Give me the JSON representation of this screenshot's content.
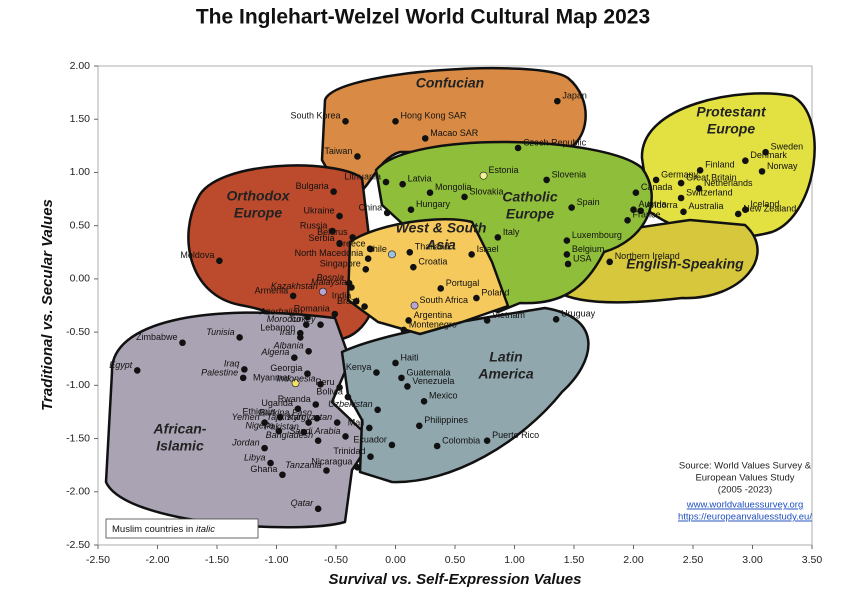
{
  "chart_data": {
    "type": "scatter",
    "title": "The Inglehart-Welzel World Cultural Map 2023",
    "x_label": "Survival vs. Self-Expression Values",
    "y_label": "Traditional vs. Secular Values",
    "xlim": [
      -2.5,
      3.5
    ],
    "ylim": [
      -2.5,
      2.0
    ],
    "xticks": [
      {
        "value": -2.5,
        "label": "-2.50"
      },
      {
        "value": -2.0,
        "label": "-2.00"
      },
      {
        "value": -1.5,
        "label": "-1.50"
      },
      {
        "value": -1.0,
        "label": "-1.00"
      },
      {
        "value": -0.5,
        "label": "-0.50"
      },
      {
        "value": 0,
        "label": "0.00"
      },
      {
        "value": 0.5,
        "label": "0.50"
      },
      {
        "value": 1.0,
        "label": "1.00"
      },
      {
        "value": 1.5,
        "label": "1.50"
      },
      {
        "value": 2.0,
        "label": "2.00"
      },
      {
        "value": 2.5,
        "label": "2.50"
      },
      {
        "value": 3.0,
        "label": "3.00"
      },
      {
        "value": 3.5,
        "label": "3.50"
      }
    ],
    "yticks": [
      {
        "value": 2.0,
        "label": "2.00"
      },
      {
        "value": 1.5,
        "label": "1.50"
      },
      {
        "value": 1.0,
        "label": "1.00"
      },
      {
        "value": 0.5,
        "label": "0.50"
      },
      {
        "value": 0,
        "label": "0.00"
      },
      {
        "value": -0.5,
        "label": "-0.50"
      },
      {
        "value": -1.0,
        "label": "-1.00"
      },
      {
        "value": -1.5,
        "label": "-1.50"
      },
      {
        "value": -2.0,
        "label": "-2.00"
      },
      {
        "value": -2.5,
        "label": "-2.50"
      }
    ],
    "point_color": "#111111",
    "regions": [
      {
        "lines": [
          "Confucian"
        ],
        "color": "#d98b45"
      },
      {
        "lines": [
          "Protestant",
          "Europe"
        ],
        "color": "#e3e142"
      },
      {
        "lines": [
          "English-Speaking"
        ],
        "color": "#d6c73c"
      },
      {
        "lines": [
          "Catholic",
          "Europe"
        ],
        "color": "#8fbf3a"
      },
      {
        "lines": [
          "Orthodox",
          "Europe"
        ],
        "color": "#bb4b2c"
      },
      {
        "lines": [
          "African-",
          "Islamic"
        ],
        "color": "#aaa3b3"
      },
      {
        "lines": [
          "Latin",
          "America"
        ],
        "color": "#90a7ae"
      },
      {
        "lines": [
          "West & South",
          "Asia"
        ],
        "color": "#f5c95c"
      }
    ],
    "points": [
      {
        "name": "Japan",
        "x": 1.36,
        "y": 1.67
      },
      {
        "name": "South Korea",
        "x": -0.42,
        "y": 1.48
      },
      {
        "name": "Hong Kong SAR",
        "x": 0.0,
        "y": 1.48
      },
      {
        "name": "Macao SAR",
        "x": 0.25,
        "y": 1.32
      },
      {
        "name": "Taiwan",
        "x": -0.32,
        "y": 1.15
      },
      {
        "name": "Czech Republic",
        "x": 1.03,
        "y": 1.23
      },
      {
        "name": "Estonia",
        "x": 0.74,
        "y": 0.97,
        "color": "#f3ef9a"
      },
      {
        "name": "Slovenia",
        "x": 1.27,
        "y": 0.93
      },
      {
        "name": "Lithuania",
        "x": -0.08,
        "y": 0.91
      },
      {
        "name": "Latvia",
        "x": 0.06,
        "y": 0.89
      },
      {
        "name": "Bulgaria",
        "x": -0.52,
        "y": 0.82
      },
      {
        "name": "Mongolia",
        "x": 0.29,
        "y": 0.81
      },
      {
        "name": "Slovakia",
        "x": 0.58,
        "y": 0.77
      },
      {
        "name": "Spain",
        "x": 1.48,
        "y": 0.67
      },
      {
        "name": "Hungary",
        "x": 0.13,
        "y": 0.65
      },
      {
        "name": "Ukraine",
        "x": -0.47,
        "y": 0.59
      },
      {
        "name": "China",
        "x": -0.07,
        "y": 0.62
      },
      {
        "name": "Austria",
        "x": 2.0,
        "y": 0.65
      },
      {
        "name": "Germany",
        "x": 2.19,
        "y": 0.93
      },
      {
        "name": "Great Britain",
        "x": 2.4,
        "y": 0.9
      },
      {
        "name": "Denmark",
        "x": 2.94,
        "y": 1.11
      },
      {
        "name": "Sweden",
        "x": 3.11,
        "y": 1.19
      },
      {
        "name": "Norway",
        "x": 3.08,
        "y": 1.01
      },
      {
        "name": "Finland",
        "x": 2.56,
        "y": 1.02
      },
      {
        "name": "Netherlands",
        "x": 2.55,
        "y": 0.85
      },
      {
        "name": "Switzerland",
        "x": 2.4,
        "y": 0.76
      },
      {
        "name": "Iceland",
        "x": 2.94,
        "y": 0.65
      },
      {
        "name": "New Zealand",
        "x": 2.88,
        "y": 0.61
      },
      {
        "name": "Australia",
        "x": 2.42,
        "y": 0.63
      },
      {
        "name": "Canada",
        "x": 2.02,
        "y": 0.81
      },
      {
        "name": "Andorra",
        "x": 2.06,
        "y": 0.64
      },
      {
        "name": "France",
        "x": 1.95,
        "y": 0.55
      },
      {
        "name": "Russia",
        "x": -0.53,
        "y": 0.45
      },
      {
        "name": "Belarus",
        "x": -0.36,
        "y": 0.39
      },
      {
        "name": "Italy",
        "x": 0.86,
        "y": 0.39
      },
      {
        "name": "Luxembourg",
        "x": 1.44,
        "y": 0.36
      },
      {
        "name": "Serbia",
        "x": -0.47,
        "y": 0.33
      },
      {
        "name": "Greece",
        "x": -0.21,
        "y": 0.28
      },
      {
        "name": "Belgium",
        "x": 1.44,
        "y": 0.23
      },
      {
        "name": "Thailand",
        "x": 0.12,
        "y": 0.25
      },
      {
        "name": "North Macedonia",
        "x": -0.23,
        "y": 0.19
      },
      {
        "name": "Chile",
        "x": -0.03,
        "y": 0.23,
        "color": "#9cc3e6"
      },
      {
        "name": "Israel",
        "x": 0.64,
        "y": 0.23
      },
      {
        "name": "USA",
        "x": 1.45,
        "y": 0.14
      },
      {
        "name": "Northern Ireland",
        "x": 1.8,
        "y": 0.16
      },
      {
        "name": "Moldova",
        "x": -1.48,
        "y": 0.17
      },
      {
        "name": "Bosnia",
        "x": -0.39,
        "y": -0.04,
        "italic": true
      },
      {
        "name": "Singapore",
        "x": -0.25,
        "y": 0.09
      },
      {
        "name": "Croatia",
        "x": 0.15,
        "y": 0.11
      },
      {
        "name": "Malaysia",
        "x": -0.37,
        "y": -0.08,
        "italic": true
      },
      {
        "name": "Armenia",
        "x": -0.86,
        "y": -0.16
      },
      {
        "name": "Kazakhstan",
        "x": -0.61,
        "y": -0.12,
        "italic": true,
        "color": "#b7a6cf"
      },
      {
        "name": "Portugal",
        "x": 0.38,
        "y": -0.09
      },
      {
        "name": "India",
        "x": -0.33,
        "y": -0.21
      },
      {
        "name": "Poland",
        "x": 0.68,
        "y": -0.18
      },
      {
        "name": "South Africa",
        "x": 0.16,
        "y": -0.25,
        "color": "#b7a6cf"
      },
      {
        "name": "Brazil",
        "x": -0.26,
        "y": -0.26
      },
      {
        "name": "Romania",
        "x": -0.51,
        "y": -0.33
      },
      {
        "name": "Azerbaijan",
        "x": -0.74,
        "y": -0.36,
        "italic": true
      },
      {
        "name": "Vietnam",
        "x": 0.77,
        "y": -0.39
      },
      {
        "name": "Uruguay",
        "x": 1.35,
        "y": -0.38
      },
      {
        "name": "Morocco",
        "x": -0.75,
        "y": -0.43,
        "italic": true
      },
      {
        "name": "Argentina",
        "x": 0.11,
        "y": -0.39
      },
      {
        "name": "Lebanon",
        "x": -0.8,
        "y": -0.51
      },
      {
        "name": "Iran",
        "x": -0.8,
        "y": -0.55,
        "italic": true
      },
      {
        "name": "Turkey",
        "x": -0.63,
        "y": -0.43,
        "italic": true
      },
      {
        "name": "Tunisia",
        "x": -1.31,
        "y": -0.55,
        "italic": true
      },
      {
        "name": "Zimbabwe",
        "x": -1.79,
        "y": -0.6
      },
      {
        "name": "Montenegro",
        "x": 0.07,
        "y": -0.48
      },
      {
        "name": "Albania",
        "x": -0.73,
        "y": -0.68,
        "italic": true
      },
      {
        "name": "Algeria",
        "x": -0.85,
        "y": -0.74,
        "italic": true
      },
      {
        "name": "Iraq",
        "x": -1.27,
        "y": -0.85,
        "italic": true
      },
      {
        "name": "Haiti",
        "x": 0.0,
        "y": -0.79
      },
      {
        "name": "Kenya",
        "x": -0.16,
        "y": -0.88
      },
      {
        "name": "Egypt",
        "x": -2.17,
        "y": -0.86,
        "italic": true
      },
      {
        "name": "Palestine",
        "x": -1.28,
        "y": -0.93,
        "italic": true
      },
      {
        "name": "Georgia",
        "x": -0.74,
        "y": -0.89
      },
      {
        "name": "Guatemala",
        "x": 0.05,
        "y": -0.93
      },
      {
        "name": "Myanmar",
        "x": -0.84,
        "y": -0.98,
        "color": "#f3e06a"
      },
      {
        "name": "Venezuela",
        "x": 0.1,
        "y": -1.01
      },
      {
        "name": "Peru",
        "x": -0.47,
        "y": -1.02
      },
      {
        "name": "Indonesia",
        "x": -0.63,
        "y": -0.99,
        "italic": true
      },
      {
        "name": "Bolivia",
        "x": -0.4,
        "y": -1.11
      },
      {
        "name": "Mexico",
        "x": 0.24,
        "y": -1.15
      },
      {
        "name": "Rwanda",
        "x": -0.67,
        "y": -1.18
      },
      {
        "name": "Uzbekistan",
        "x": -0.15,
        "y": -1.23,
        "italic": true
      },
      {
        "name": "Uganda",
        "x": -0.82,
        "y": -1.22
      },
      {
        "name": "Ethiopia",
        "x": -0.97,
        "y": -1.3
      },
      {
        "name": "Burkina Faso",
        "x": -0.66,
        "y": -1.31,
        "italic": true
      },
      {
        "name": "Yemen",
        "x": -1.1,
        "y": -1.35,
        "italic": true
      },
      {
        "name": "Tajikistan",
        "x": -0.73,
        "y": -1.35,
        "italic": true
      },
      {
        "name": "Kyrgyzstan",
        "x": -0.49,
        "y": -1.35,
        "italic": true
      },
      {
        "name": "Mali",
        "x": -0.22,
        "y": -1.4
      },
      {
        "name": "Philippines",
        "x": 0.2,
        "y": -1.38
      },
      {
        "name": "Nigeria",
        "x": -0.98,
        "y": -1.43,
        "italic": true
      },
      {
        "name": "Pakistan",
        "x": -0.77,
        "y": -1.44,
        "italic": true
      },
      {
        "name": "Bangladesh",
        "x": -0.65,
        "y": -1.52,
        "italic": true
      },
      {
        "name": "Saudi Arabia",
        "x": -0.42,
        "y": -1.48,
        "italic": true
      },
      {
        "name": "Puerto Rico",
        "x": 0.77,
        "y": -1.52
      },
      {
        "name": "Jordan",
        "x": -1.1,
        "y": -1.59,
        "italic": true
      },
      {
        "name": "Ecuador",
        "x": -0.03,
        "y": -1.56
      },
      {
        "name": "Colombia",
        "x": 0.35,
        "y": -1.57
      },
      {
        "name": "Libya",
        "x": -1.05,
        "y": -1.73,
        "italic": true
      },
      {
        "name": "Trinidad",
        "x": -0.21,
        "y": -1.67
      },
      {
        "name": "Nicaragua",
        "x": -0.32,
        "y": -1.77
      },
      {
        "name": "Ghana",
        "x": -0.95,
        "y": -1.84
      },
      {
        "name": "Tanzania",
        "x": -0.58,
        "y": -1.8,
        "italic": true
      },
      {
        "name": "Qatar",
        "x": -0.65,
        "y": -2.16,
        "italic": true
      }
    ],
    "note": "Muslim countries in",
    "note_italic": "italic",
    "source": [
      "Source: World Values Survey &",
      "European Values Study",
      "(2005 -2023)"
    ],
    "links": [
      "www.worldvaluessurvey.org",
      "https://europeanvaluesstudy.eu/"
    ]
  }
}
